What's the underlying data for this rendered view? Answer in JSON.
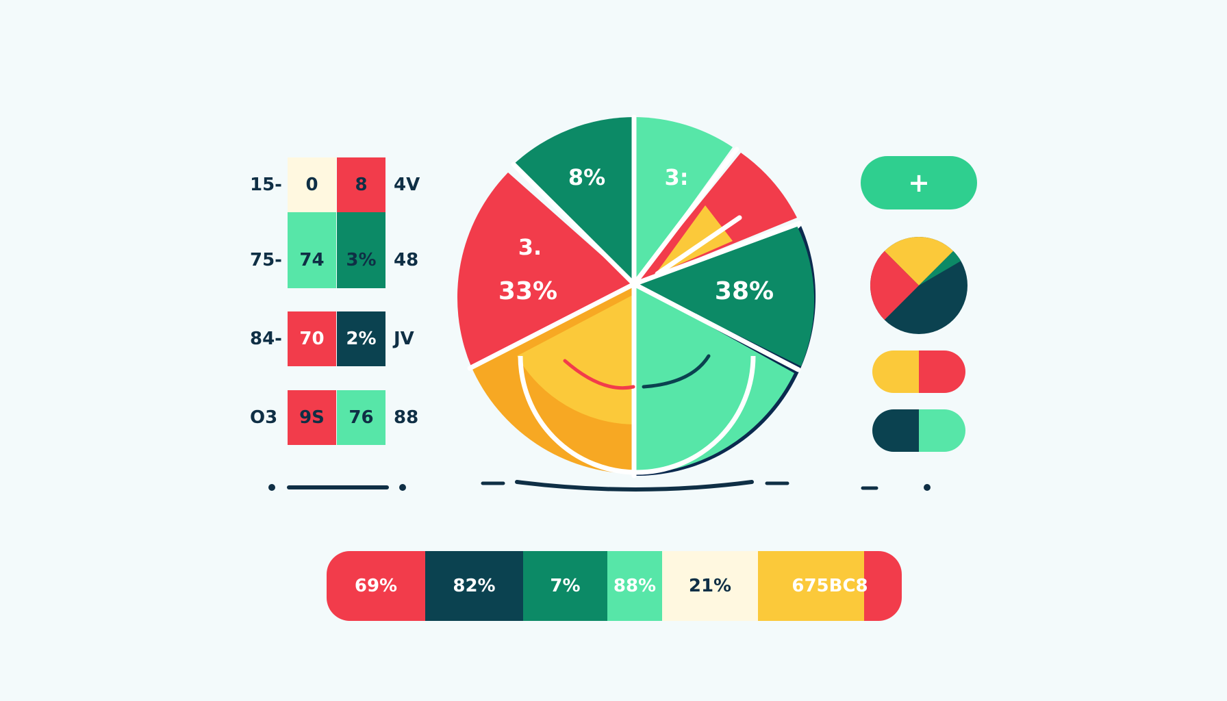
{
  "colors": {
    "red": "#f23c4b",
    "dark_green": "#0c8a66",
    "mint": "#57e6a8",
    "navy": "#0b4250",
    "yellow": "#fbc93a",
    "orange": "#f7a823",
    "cream": "#fff8e0",
    "bg": "#f3fafb"
  },
  "table": {
    "rows": [
      {
        "left": "15-",
        "cells": [
          "0",
          "8"
        ],
        "right": "4V"
      },
      {
        "left": "75-",
        "cells": [
          "74",
          "3%"
        ],
        "right": "48"
      },
      {
        "left": "84-",
        "cells": [
          "70",
          "2%"
        ],
        "right": "JV"
      },
      {
        "left": "O3",
        "cells": [
          "9S",
          "76"
        ],
        "right": "88"
      }
    ]
  },
  "chart_data": {
    "type": "pie",
    "slice_labels": [
      "8%",
      "3:",
      "38%",
      "3.",
      "33%"
    ]
  },
  "side_controls": {
    "add_button_label": "+"
  },
  "bottom_bar": {
    "segments": [
      "69%",
      "82%",
      "7%",
      "88%",
      "21%",
      "675BC8"
    ]
  }
}
